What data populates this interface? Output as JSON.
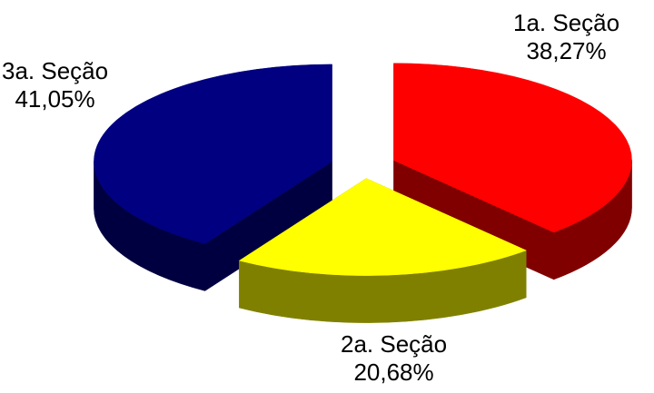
{
  "chart_data": {
    "type": "pie",
    "style": "3d-exploded",
    "title": "",
    "slices": [
      {
        "name": "1a. Seção",
        "value": 38.27,
        "value_label": "38,27%",
        "color": "#ff0000",
        "side_color": "#800000"
      },
      {
        "name": "2a. Seção",
        "value": 20.68,
        "value_label": "20,68%",
        "color": "#ffff00",
        "side_color": "#808000"
      },
      {
        "name": "3a. Seção",
        "value": 41.05,
        "value_label": "41,05%",
        "color": "#000080",
        "side_color": "#000040"
      }
    ],
    "legend": "none"
  }
}
